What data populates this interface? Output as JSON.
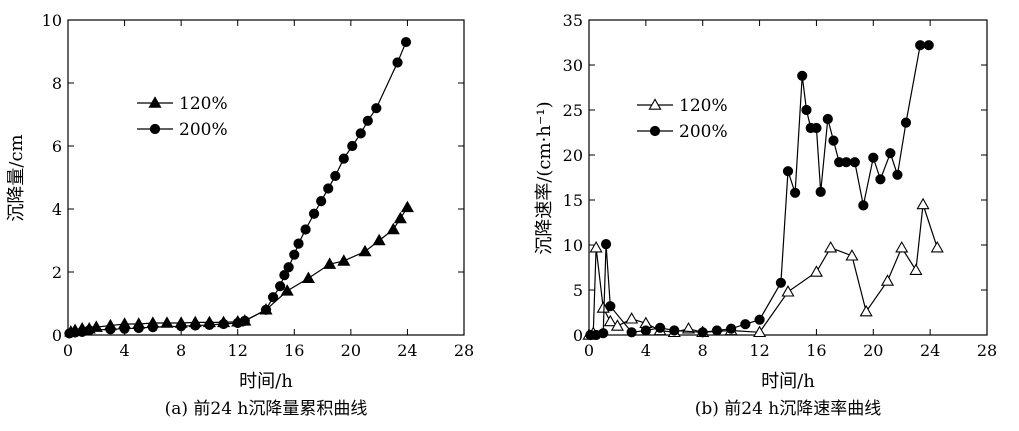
{
  "chart_data": [
    {
      "type": "line",
      "caption": "(a) 前24 h沉降量累积曲线",
      "xlabel": "时间/h",
      "ylabel": "沉降量/cm",
      "xlim": [
        0,
        28
      ],
      "ylim": [
        0,
        10
      ],
      "xticks": [
        0,
        4,
        8,
        12,
        16,
        20,
        24,
        28
      ],
      "yticks": [
        0,
        2,
        4,
        6,
        8,
        10
      ],
      "legend_position": "upper-left",
      "series": [
        {
          "name": "120%",
          "marker": "filled-triangle",
          "x": [
            0.2,
            0.5,
            1,
            1.5,
            2,
            3,
            4,
            5,
            6,
            7,
            8,
            9,
            10,
            11,
            12,
            12.5,
            14,
            15.5,
            17,
            18.5,
            19.5,
            21,
            22,
            23,
            23.5,
            24
          ],
          "y": [
            0.1,
            0.15,
            0.2,
            0.2,
            0.25,
            0.3,
            0.35,
            0.35,
            0.38,
            0.38,
            0.38,
            0.4,
            0.4,
            0.4,
            0.42,
            0.45,
            0.8,
            1.4,
            1.8,
            2.25,
            2.35,
            2.65,
            3.0,
            3.35,
            3.7,
            4.05
          ]
        },
        {
          "name": "200%",
          "marker": "filled-circle",
          "x": [
            0.1,
            0.5,
            1,
            1.5,
            3,
            4,
            5,
            6,
            8,
            9,
            10,
            11,
            12,
            12.5,
            14,
            14.5,
            15,
            15.3,
            15.6,
            16,
            16.3,
            16.8,
            17.4,
            17.9,
            18.4,
            18.9,
            19.5,
            20.1,
            20.7,
            21.2,
            21.8,
            23.3,
            23.9
          ],
          "y": [
            0.05,
            0.08,
            0.1,
            0.15,
            0.18,
            0.2,
            0.22,
            0.25,
            0.28,
            0.3,
            0.32,
            0.35,
            0.38,
            0.45,
            0.8,
            1.2,
            1.55,
            1.9,
            2.15,
            2.55,
            2.9,
            3.35,
            3.85,
            4.25,
            4.65,
            5.05,
            5.6,
            6.0,
            6.4,
            6.8,
            7.2,
            8.65,
            9.3
          ]
        }
      ]
    },
    {
      "type": "line",
      "caption": "(b) 前24 h沉降速率曲线",
      "xlabel": "时间/h",
      "ylabel": "沉降速率/(cm·h⁻¹)",
      "xlim": [
        0,
        28
      ],
      "ylim": [
        0,
        35
      ],
      "xticks": [
        0,
        4,
        8,
        12,
        16,
        20,
        24,
        28
      ],
      "yticks": [
        0,
        5,
        10,
        15,
        20,
        25,
        30,
        35
      ],
      "legend_position": "upper-left",
      "series": [
        {
          "name": "120%",
          "marker": "open-triangle",
          "x": [
            0,
            0.3,
            0.5,
            1,
            1.5,
            2,
            3,
            4,
            5,
            6,
            7,
            8,
            10,
            12,
            14,
            16,
            17,
            18.5,
            19.5,
            21,
            22,
            23,
            23.5,
            24.5
          ],
          "y": [
            0,
            0.2,
            9.7,
            3.0,
            1.5,
            1.0,
            1.8,
            1.3,
            0.5,
            0.3,
            0.7,
            0.3,
            0.5,
            0.3,
            4.8,
            7.0,
            9.7,
            8.8,
            2.6,
            6.0,
            9.7,
            7.2,
            14.5,
            9.7
          ]
        },
        {
          "name": "200%",
          "marker": "filled-circle",
          "x": [
            0.1,
            0.5,
            1,
            1.2,
            1.5,
            3,
            4,
            5,
            6,
            8,
            9,
            10,
            11,
            12,
            13.5,
            14,
            14.5,
            15,
            15.3,
            15.6,
            16,
            16.3,
            16.8,
            17.2,
            17.6,
            18.1,
            18.7,
            19.3,
            20,
            20.5,
            21.2,
            21.7,
            22.3,
            23.3,
            23.9
          ],
          "y": [
            0,
            0,
            0.2,
            10.1,
            3.2,
            0.3,
            0.5,
            0.8,
            0.5,
            0.3,
            0.5,
            0.7,
            1.2,
            1.7,
            5.8,
            18.2,
            15.8,
            28.8,
            25.0,
            23.0,
            23.0,
            15.9,
            24.0,
            21.6,
            19.2,
            19.2,
            19.2,
            14.4,
            19.7,
            17.3,
            20.2,
            17.8,
            23.6,
            32.2,
            32.2
          ]
        }
      ]
    }
  ]
}
